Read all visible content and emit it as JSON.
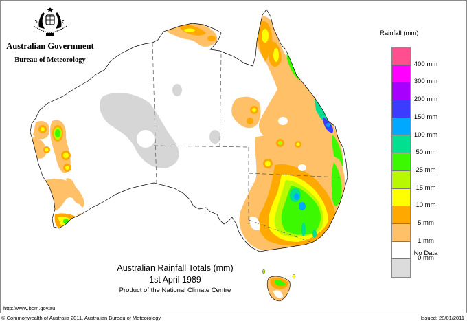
{
  "header": {
    "government": "Australian Government",
    "bureau": "Bureau of Meteorology",
    "logo_icon": "coat-of-arms-icon"
  },
  "title": {
    "main": "Australian Rainfall Totals (mm)",
    "date": "1st April 1989",
    "product": "Product of the National Climate Centre"
  },
  "legend": {
    "title": "Rainfall (mm)",
    "swatches": [
      {
        "range": ">400",
        "color": "#ff4f8f"
      },
      {
        "range": "300-400",
        "color": "#ff00ff"
      },
      {
        "range": "200-300",
        "color": "#a800ff"
      },
      {
        "range": "150-200",
        "color": "#3c3cff"
      },
      {
        "range": "100-150",
        "color": "#00a8ff"
      },
      {
        "range": "50-100",
        "color": "#00e090"
      },
      {
        "range": "25-50",
        "color": "#3cf800"
      },
      {
        "range": "15-25",
        "color": "#b8f800"
      },
      {
        "range": "10-15",
        "color": "#ffff00"
      },
      {
        "range": "5-10",
        "color": "#ffa800"
      },
      {
        "range": "1-5",
        "color": "#ffc068"
      },
      {
        "range": "0-1",
        "color": "#ffffff"
      },
      {
        "range": "No Data",
        "color": "#dcdcdc"
      }
    ],
    "labels": [
      "400 mm",
      "300 mm",
      "200 mm",
      "150 mm",
      "100 mm",
      "50 mm",
      "25 mm",
      "15 mm",
      "10 mm",
      "5 mm",
      "1 mm",
      "0 mm",
      "No Data"
    ]
  },
  "footer": {
    "url": "http://www.bom.gov.au",
    "copyright": "© Commonwealth of Australia 2011, Australian Bureau of Meteorology",
    "issued": "Issued: 28/01/2011"
  },
  "map": {
    "region": "Australia",
    "colors": {
      "coast": "#000000",
      "border": "#555555",
      "no_data": "#d6d6d6",
      "r1": "#ffc068",
      "r5": "#ffa800",
      "r10": "#ffff00",
      "r15": "#b8f800",
      "r25": "#3cf800",
      "r50": "#00e090",
      "r100": "#00a8ff",
      "r150": "#3c3cff"
    }
  }
}
